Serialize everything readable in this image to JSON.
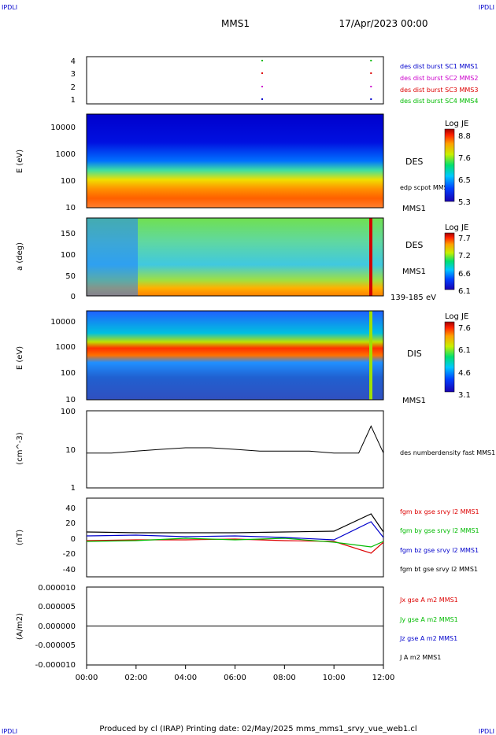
{
  "corners": {
    "tl": "IPDLI",
    "tr": "IPDLI",
    "bl": "IPDLI",
    "br": "IPDLI"
  },
  "header": {
    "mission": "MMS1",
    "date": "17/Apr/2023 00:00"
  },
  "footer": "Produced by cl (IRAP)   Printing date: 02/May/2025   mms_mms1_srvy_vue_web1.cl",
  "colors": {
    "c1": "#0000cc",
    "c2": "#cc00cc",
    "c3": "#dd0000",
    "c4": "#00bb00",
    "black": "#000000"
  },
  "time_axis": {
    "ticks": [
      "00:00",
      "02:00",
      "04:00",
      "06:00",
      "08:00",
      "10:00",
      "12:00"
    ],
    "range_hours": [
      0,
      12
    ]
  },
  "chart_data": [
    {
      "type": "scatter",
      "panel": "burst",
      "yticks": [
        "4",
        "3",
        "2",
        "1"
      ],
      "legend": [
        "des dist burst SC1 MMS1",
        "des dist burst SC2 MMS2",
        "des dist burst SC3 MMS3",
        "des dist burst SC4 MMS4"
      ],
      "series": [
        {
          "name": "des dist burst SC1 MMS1",
          "level": 1,
          "x_hours": [
            7.1,
            11.5
          ]
        },
        {
          "name": "des dist burst SC2 MMS2",
          "level": 2,
          "x_hours": [
            7.1,
            11.5
          ]
        },
        {
          "name": "des dist burst SC3 MMS3",
          "level": 3,
          "x_hours": [
            7.1,
            11.5
          ]
        },
        {
          "name": "des dist burst SC4 MMS4",
          "level": 4,
          "x_hours": [
            7.1,
            11.5
          ]
        }
      ]
    },
    {
      "type": "heatmap",
      "panel": "des_energy",
      "ylabel": "E (eV)",
      "yticks": [
        "10000",
        "1000",
        "100",
        "10"
      ],
      "ylim": [
        10,
        30000
      ],
      "yscale": "log",
      "labels": [
        "DES",
        "edp scpot MMS1",
        "MMS1"
      ],
      "colorbar": {
        "title": "Log JE",
        "ticks": [
          "8.8",
          "7.6",
          "6.5",
          "5.3"
        ],
        "range": [
          5.3,
          8.8
        ]
      }
    },
    {
      "type": "heatmap",
      "panel": "des_pitch",
      "ylabel": "a (deg)",
      "yticks": [
        "150",
        "100",
        "50",
        "0"
      ],
      "ylim": [
        0,
        180
      ],
      "labels": [
        "DES",
        "MMS1",
        "139-185 eV"
      ],
      "colorbar": {
        "title": "Log JE",
        "ticks": [
          "7.7",
          "7.2",
          "6.6",
          "6.1"
        ],
        "range": [
          6.1,
          7.7
        ]
      }
    },
    {
      "type": "heatmap",
      "panel": "dis_energy",
      "ylabel": "E (eV)",
      "yticks": [
        "10000",
        "1000",
        "100",
        "10"
      ],
      "ylim": [
        10,
        30000
      ],
      "yscale": "log",
      "labels": [
        "DIS",
        "MMS1"
      ],
      "colorbar": {
        "title": "Log JE",
        "ticks": [
          "7.6",
          "6.1",
          "4.6",
          "3.1"
        ],
        "range": [
          3.1,
          7.6
        ]
      }
    },
    {
      "type": "line",
      "panel": "density",
      "ylabel": "(cm^-3)",
      "yticks": [
        "100",
        "10",
        "1"
      ],
      "ylim": [
        1,
        100
      ],
      "yscale": "log",
      "series": [
        {
          "name": "des numberdensity fast MMS1",
          "x": [
            0,
            1,
            2,
            3,
            4,
            5,
            6,
            7,
            8,
            9,
            10,
            11,
            11.5,
            12
          ],
          "y": [
            8,
            8,
            9,
            10,
            11,
            11,
            10,
            9,
            9,
            9,
            8,
            8,
            40,
            8
          ]
        }
      ]
    },
    {
      "type": "line",
      "panel": "fgm",
      "ylabel": "(nT)",
      "yticks": [
        "40",
        "20",
        "0",
        "-20",
        "-40"
      ],
      "ylim": [
        -50,
        50
      ],
      "series": [
        {
          "name": "fgm bx gse srvy l2 MMS1",
          "x": [
            0,
            2,
            4,
            6,
            8,
            10,
            11.5,
            12
          ],
          "y": [
            -4,
            -3,
            -3,
            -2,
            -4,
            -5,
            -20,
            -6
          ]
        },
        {
          "name": "fgm by gse srvy l2 MMS1",
          "x": [
            0,
            2,
            4,
            6,
            8,
            10,
            11.5,
            12
          ],
          "y": [
            -5,
            -4,
            -1,
            -3,
            -1,
            -6,
            -12,
            -5
          ]
        },
        {
          "name": "fgm bz gse srvy l2 MMS1",
          "x": [
            0,
            2,
            4,
            6,
            8,
            10,
            11.5,
            12
          ],
          "y": [
            2,
            3,
            1,
            2,
            0,
            -3,
            20,
            0
          ]
        },
        {
          "name": "fgm bt gse srvy l2 MMS1",
          "x": [
            0,
            2,
            4,
            6,
            8,
            10,
            11.5,
            12
          ],
          "y": [
            7,
            6,
            6,
            6,
            7,
            8,
            30,
            7
          ]
        }
      ]
    },
    {
      "type": "line",
      "panel": "current",
      "ylabel": "(A/m2)",
      "yticks": [
        "0.000010",
        "0.000005",
        "0.000000",
        "-0.000005",
        "-0.000010"
      ],
      "ylim": [
        -1e-05,
        1e-05
      ],
      "series": [
        {
          "name": "Jx gse A m2 MMS1",
          "x": [
            0,
            12
          ],
          "y": [
            0,
            0
          ]
        },
        {
          "name": "Jy gse A m2 MMS1",
          "x": [
            0,
            12
          ],
          "y": [
            0,
            0
          ]
        },
        {
          "name": "Jz gse A m2 MMS1",
          "x": [
            0,
            12
          ],
          "y": [
            0,
            0
          ]
        },
        {
          "name": "J A m2 MMS1",
          "x": [
            0,
            12
          ],
          "y": [
            0,
            0
          ]
        }
      ]
    }
  ]
}
